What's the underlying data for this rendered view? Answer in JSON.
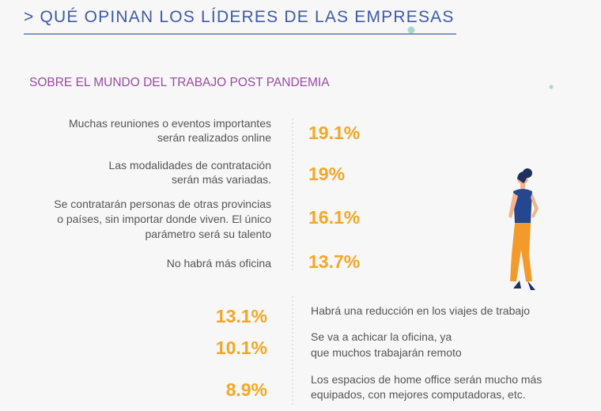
{
  "header": {
    "title": "> QUÉ OPINAN LOS LÍDERES DE LAS EMPRESAS"
  },
  "subtitle": "SOBRE EL MUNDO DEL TRABAJO POST PANDEMIA",
  "top_items": [
    {
      "lines": [
        "Muchas reuniones o eventos importantes",
        "serán realizados online"
      ],
      "percent": "19.1%"
    },
    {
      "lines": [
        "Las modalidades de contratación",
        "serán más variadas."
      ],
      "percent": "19%"
    },
    {
      "lines": [
        "Se contratarán personas de otras provincias",
        "o países, sin importar donde viven. El único",
        "parámetro será su talento"
      ],
      "percent": "16.1%"
    },
    {
      "lines": [
        "No habrá más oficina"
      ],
      "percent": "13.7%"
    }
  ],
  "bottom_items": [
    {
      "lines": [
        "Habrá una reducción en los viajes de trabajo"
      ],
      "percent": "13.1%"
    },
    {
      "lines": [
        "Se va a achicar la oficina, ya",
        "que muchos trabajarán remoto"
      ],
      "percent": "10.1%"
    },
    {
      "lines": [
        "Los espacios de home office serán mucho más",
        "equipados, con mejores computadoras, etc."
      ],
      "percent": "8.9%"
    }
  ]
}
